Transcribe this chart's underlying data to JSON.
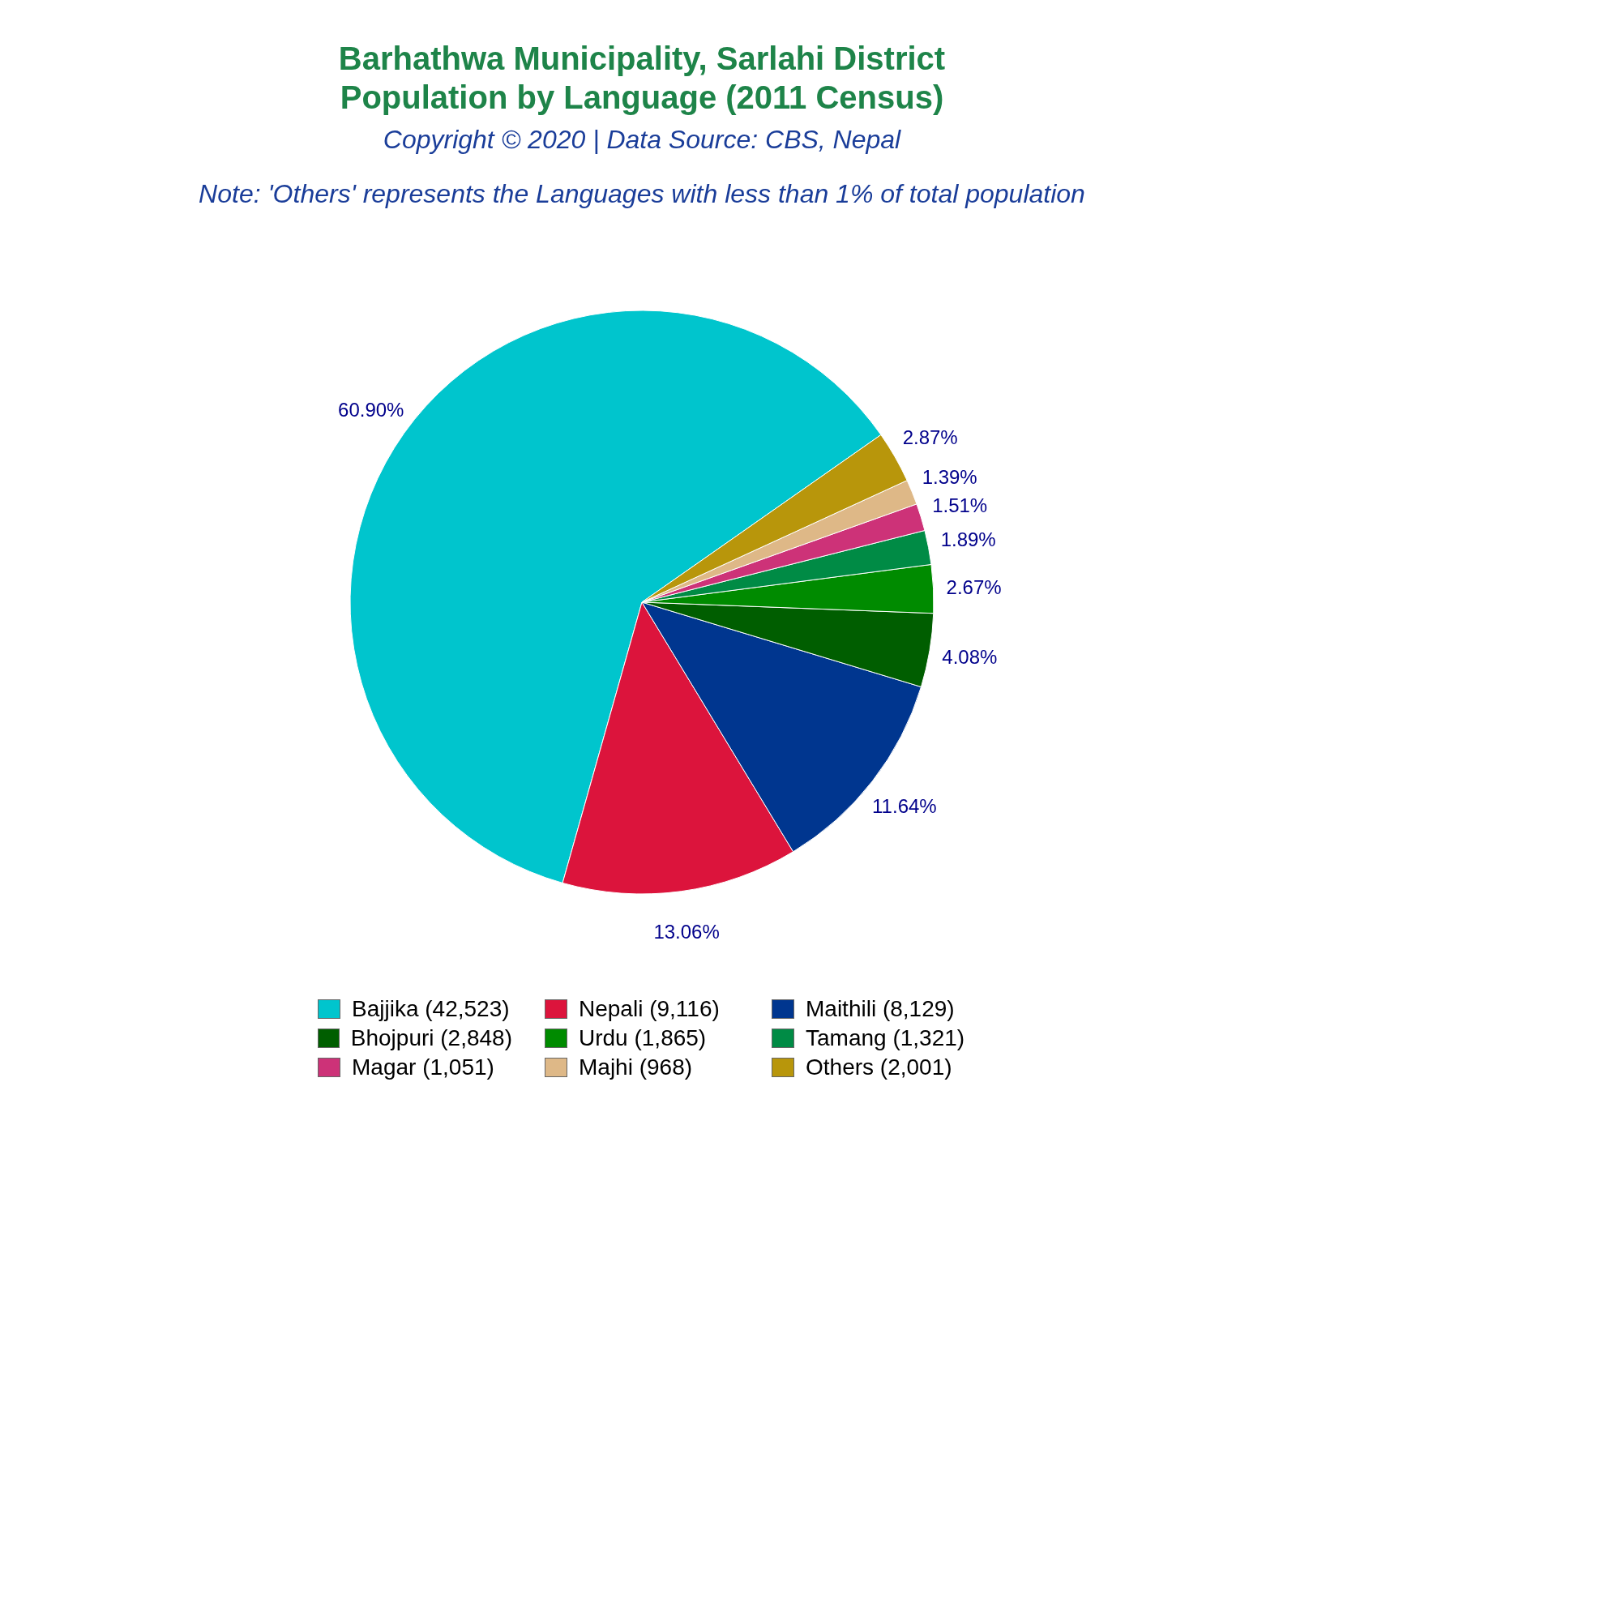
{
  "chart_data": {
    "type": "pie",
    "title": "Barhathwa Municipality, Sarlahi District\nPopulation by Language (2011 Census)",
    "subtitle": "Copyright © 2020 | Data Source: CBS, Nepal",
    "annotations": [
      "Note: 'Others' represents the Languages with less than 1% of total population"
    ],
    "categories": [
      "Bajjika (42,523)",
      "Nepali (9,116)",
      "Maithili (8,129)",
      "Bhojpuri (2,848)",
      "Urdu (1,865)",
      "Tamang (1,321)",
      "Magar (1,051)",
      "Majhi (968)",
      "Others (2,001)"
    ],
    "values": [
      60.9,
      13.06,
      11.64,
      4.08,
      2.67,
      1.89,
      1.51,
      1.39,
      2.87
    ],
    "value_labels": [
      "60.90%",
      "13.06%",
      "11.64%",
      "4.08%",
      "2.67%",
      "1.89%",
      "1.51%",
      "1.39%",
      "2.87%"
    ],
    "colors": [
      "#00c5cd",
      "#dc143c",
      "#00368f",
      "#005e00",
      "#008b00",
      "#008b45",
      "#cd3278",
      "#deb887",
      "#b8960b"
    ],
    "legend": "bottom"
  }
}
